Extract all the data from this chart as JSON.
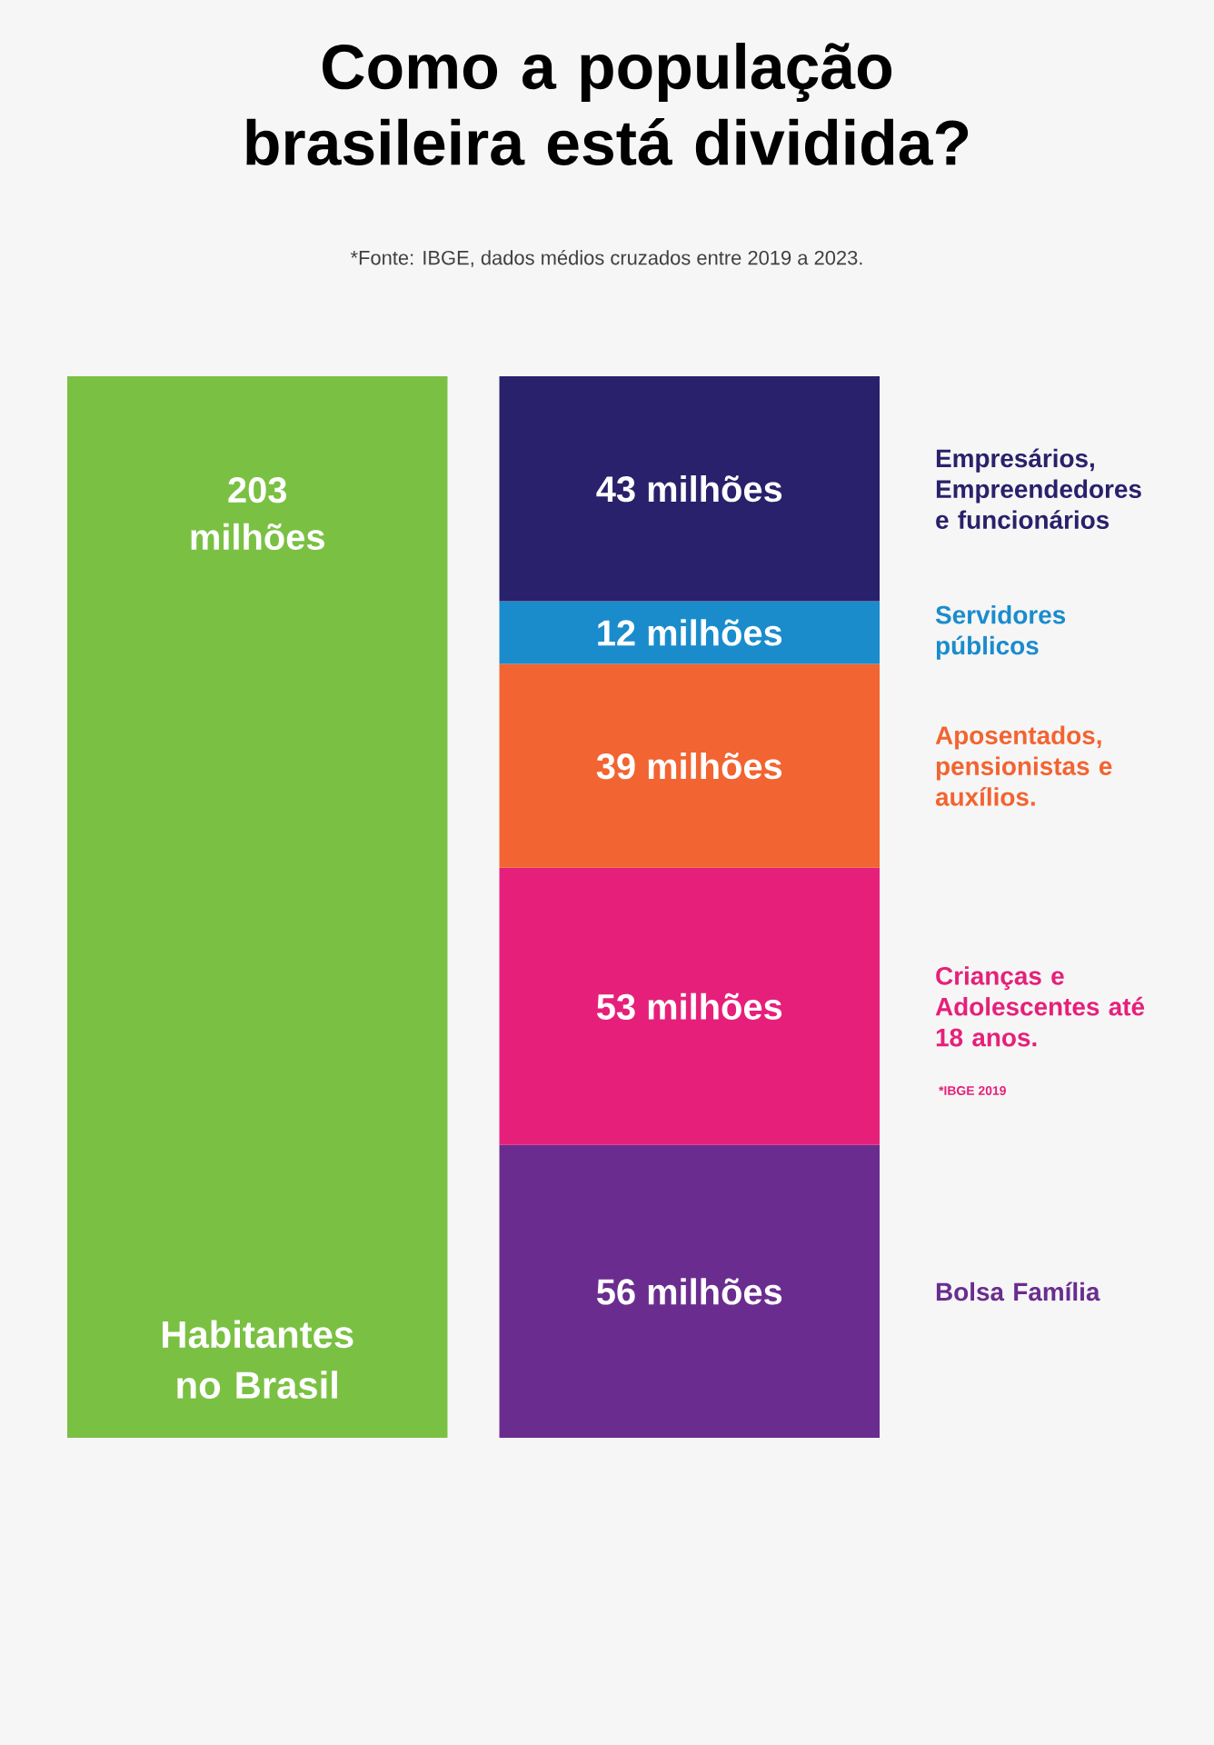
{
  "chart_data": {
    "type": "bar",
    "stacked": true,
    "title": "Como a população brasileira está dividida?",
    "annotations": [
      "*Fonte: IBGE, dados médios cruzados entre 2019 a 2023.",
      "*IBGE 2019"
    ],
    "categories": [
      null,
      null
    ],
    "series": [
      {
        "name": "Habitantes no Brasil",
        "color": "#7ac143",
        "values": [
          203,
          null
        ],
        "value_labels": [
          "203 milhões",
          null
        ]
      },
      {
        "name": "Bolsa Família",
        "color": "#6a2d8f",
        "values": [
          null,
          56
        ],
        "value_labels": [
          null,
          "56 milhões"
        ]
      },
      {
        "name": "Crianças e Adolescentes até 18 anos.",
        "color": "#e6207a",
        "values": [
          null,
          53
        ],
        "value_labels": [
          null,
          "53 milhões"
        ]
      },
      {
        "name": "Aposentados, pensionistas e auxílios.",
        "color": "#f26431",
        "values": [
          null,
          39
        ],
        "value_labels": [
          null,
          "39 milhões"
        ]
      },
      {
        "name": "Servidores públicos",
        "color": "#1a8ccc",
        "values": [
          null,
          12
        ],
        "value_labels": [
          null,
          "12 milhões"
        ]
      },
      {
        "name": "Empresários, Empreendedores e funcionários",
        "color": "#29216b",
        "values": [
          null,
          43
        ],
        "value_labels": [
          null,
          "43 milhões"
        ]
      }
    ]
  }
}
